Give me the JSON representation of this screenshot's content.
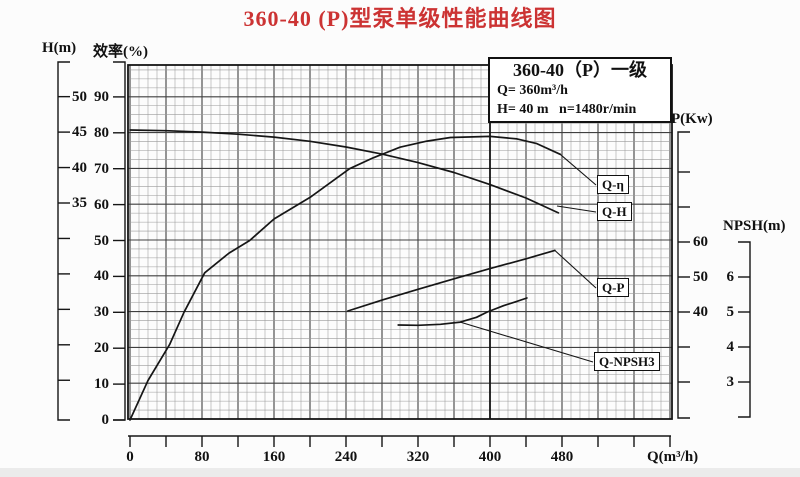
{
  "page": {
    "title": "360-40 (P)型泵单级性能曲线图",
    "title_color": "#cc3333",
    "line_color": "#161616",
    "grid_minor_color": "#9a9a9a",
    "grid_major_color": "#3f3f3f"
  },
  "info_box": {
    "model": "360-40（P）一级",
    "flow": "Q= 360m³/h",
    "head_speed": "H= 40 m   n=1480r/min"
  },
  "chart_data": {
    "type": "line",
    "title": "360-40 (P)型泵单级性能曲线图",
    "grid": "on",
    "x_axis": {
      "label": "Q(m³/h)",
      "min": 0,
      "max": 600,
      "tick_step": 40,
      "labeled_ticks": [
        0,
        80,
        160,
        240,
        320,
        400,
        480
      ]
    },
    "y_axes": [
      {
        "id": "H",
        "label": "H(m)",
        "min": 5,
        "max": 52,
        "ticks": [
          {
            "v": 50,
            "t": "50"
          },
          {
            "v": 45,
            "t": "45"
          },
          {
            "v": 40,
            "t": "40"
          },
          {
            "v": 35,
            "t": "35"
          },
          {
            "v": 30
          },
          {
            "v": 25
          },
          {
            "v": 20
          },
          {
            "v": 15
          },
          {
            "v": 10
          }
        ]
      },
      {
        "id": "eta",
        "label": "效率(%)",
        "min": 0,
        "max": 100,
        "ticks": [
          {
            "v": 90,
            "t": "90"
          },
          {
            "v": 80,
            "t": "80"
          },
          {
            "v": 70,
            "t": "70"
          },
          {
            "v": 60,
            "t": "60"
          },
          {
            "v": 50,
            "t": "50"
          },
          {
            "v": 40,
            "t": "40"
          },
          {
            "v": 30,
            "t": "30"
          },
          {
            "v": 20,
            "t": "20"
          },
          {
            "v": 10,
            "t": "10"
          },
          {
            "v": 0,
            "t": "0"
          }
        ]
      },
      {
        "id": "P",
        "label": "P(Kw)",
        "min": 10,
        "max": 90,
        "ticks": [
          {
            "v": 80
          },
          {
            "v": 70
          },
          {
            "v": 60,
            "t": "60"
          },
          {
            "v": 50,
            "t": "50"
          },
          {
            "v": 40,
            "t": "40"
          },
          {
            "v": 30
          },
          {
            "v": 20
          }
        ]
      },
      {
        "id": "NPSH",
        "label": "NPSH(m)",
        "min": 2,
        "max": 7,
        "ticks": [
          {
            "v": 6,
            "t": "6"
          },
          {
            "v": 5,
            "t": "5"
          },
          {
            "v": 4,
            "t": "4"
          },
          {
            "v": 3,
            "t": "3"
          }
        ]
      }
    ],
    "reference_line_q": 400,
    "rated_point": {
      "Q": 360,
      "H": 40,
      "n": "1480r/min"
    },
    "series": [
      {
        "name": "Q-H",
        "label": "Q-H",
        "axis": "H",
        "points": [
          [
            0,
            45.3
          ],
          [
            40,
            45.2
          ],
          [
            80,
            45.0
          ],
          [
            120,
            44.7
          ],
          [
            160,
            44.3
          ],
          [
            200,
            43.7
          ],
          [
            240,
            42.9
          ],
          [
            280,
            41.9
          ],
          [
            320,
            40.7
          ],
          [
            360,
            39.3
          ],
          [
            400,
            37.6
          ],
          [
            440,
            35.7
          ],
          [
            476,
            33.6
          ]
        ]
      },
      {
        "name": "Q-eta",
        "label": "Q-η",
        "axis": "eta",
        "points": [
          [
            0,
            0
          ],
          [
            20,
            11
          ],
          [
            44,
            21
          ],
          [
            60,
            30
          ],
          [
            83,
            41
          ],
          [
            110,
            46.5
          ],
          [
            133,
            50
          ],
          [
            160,
            56
          ],
          [
            200,
            62
          ],
          [
            244,
            70
          ],
          [
            270,
            73
          ],
          [
            300,
            76
          ],
          [
            330,
            77.7
          ],
          [
            356,
            78.7
          ],
          [
            400,
            79
          ],
          [
            430,
            78.3
          ],
          [
            452,
            77
          ],
          [
            478,
            74
          ]
        ]
      },
      {
        "name": "Q-P",
        "label": "Q-P",
        "axis": "P",
        "points": [
          [
            242,
            40.3
          ],
          [
            280,
            43.4
          ],
          [
            320,
            46.5
          ],
          [
            360,
            49.5
          ],
          [
            400,
            52.4
          ],
          [
            440,
            55.2
          ],
          [
            472,
            57.6
          ]
        ]
      },
      {
        "name": "Q-NPSH3",
        "label": "Q-NPSH3",
        "axis": "NPSH",
        "points": [
          [
            298,
            4.63
          ],
          [
            320,
            4.62
          ],
          [
            345,
            4.65
          ],
          [
            367,
            4.71
          ],
          [
            385,
            4.85
          ],
          [
            397,
            5.0
          ],
          [
            415,
            5.18
          ],
          [
            428,
            5.29
          ],
          [
            441,
            5.4
          ]
        ]
      }
    ]
  }
}
